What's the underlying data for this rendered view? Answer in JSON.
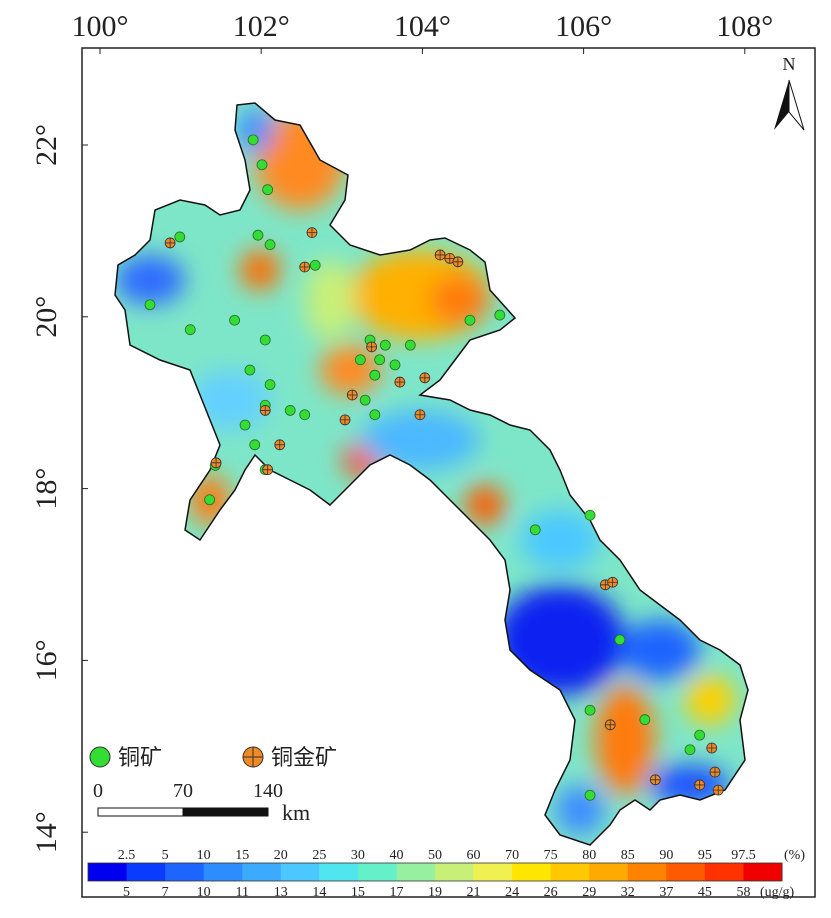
{
  "map": {
    "xticks": [
      {
        "value": 100,
        "label": "100°"
      },
      {
        "value": 102,
        "label": "102°"
      },
      {
        "value": 104,
        "label": "104°"
      },
      {
        "value": 106,
        "label": "106°"
      },
      {
        "value": 108,
        "label": "108°"
      }
    ],
    "yticks": [
      {
        "value": 14,
        "label": "14°"
      },
      {
        "value": 16,
        "label": "16°"
      },
      {
        "value": 18,
        "label": "18°"
      },
      {
        "value": 20,
        "label": "20°"
      },
      {
        "value": 22,
        "label": "22°"
      }
    ],
    "north": "N",
    "legend": {
      "copper": "铜矿",
      "copper_gold": "铜金矿",
      "copper_color": "#33dd33",
      "copper_gold_color": "#f08a24"
    },
    "scale_bar": {
      "labels": [
        0,
        70,
        140
      ],
      "unit": "km"
    },
    "colorbar": {
      "colors": [
        "#0000f0",
        "#0a3cff",
        "#1e64ff",
        "#2d8cff",
        "#3caaff",
        "#4bc8ff",
        "#50e6f0",
        "#64f0c8",
        "#96f0a0",
        "#c8f078",
        "#f0f050",
        "#ffe600",
        "#ffc800",
        "#ffaa00",
        "#ff8200",
        "#ff5a00",
        "#ff3200",
        "#f00000"
      ],
      "percent_labels": [
        2.5,
        5,
        10,
        15,
        20,
        25,
        30,
        40,
        50,
        60,
        70,
        75,
        80,
        85,
        90,
        95,
        97.5
      ],
      "percent_unit": "(%)",
      "conc_labels": [
        5,
        7,
        10,
        11,
        13,
        14,
        15,
        17,
        19,
        21,
        24,
        26,
        29,
        32,
        37,
        45,
        58
      ],
      "conc_unit": "(ug/g)"
    },
    "copper_mines": [
      [
        101.9,
        22.06
      ],
      [
        102.01,
        21.77
      ],
      [
        102.08,
        21.48
      ],
      [
        101.96,
        20.95
      ],
      [
        102.11,
        20.84
      ],
      [
        100.99,
        20.93
      ],
      [
        100.62,
        20.14
      ],
      [
        101.12,
        19.85
      ],
      [
        101.67,
        19.96
      ],
      [
        102.05,
        19.73
      ],
      [
        101.86,
        19.38
      ],
      [
        102.11,
        19.21
      ],
      [
        102.05,
        18.97
      ],
      [
        102.36,
        18.91
      ],
      [
        102.54,
        18.86
      ],
      [
        101.8,
        18.74
      ],
      [
        101.92,
        18.51
      ],
      [
        102.05,
        18.22
      ],
      [
        101.43,
        18.27
      ],
      [
        101.36,
        17.87
      ],
      [
        103.35,
        19.73
      ],
      [
        103.54,
        19.67
      ],
      [
        103.47,
        19.5
      ],
      [
        103.23,
        19.5
      ],
      [
        103.66,
        19.44
      ],
      [
        103.41,
        19.32
      ],
      [
        103.85,
        19.67
      ],
      [
        103.29,
        19.03
      ],
      [
        103.41,
        18.86
      ],
      [
        102.67,
        20.6
      ],
      [
        104.59,
        19.96
      ],
      [
        104.96,
        20.02
      ],
      [
        106.08,
        17.69
      ],
      [
        105.4,
        17.52
      ],
      [
        106.45,
        16.24
      ],
      [
        106.08,
        15.42
      ],
      [
        106.76,
        15.31
      ],
      [
        107.44,
        15.13
      ],
      [
        107.32,
        14.96
      ],
      [
        106.08,
        14.43
      ]
    ],
    "copper_gold_mines": [
      [
        100.87,
        20.86
      ],
      [
        102.63,
        20.98
      ],
      [
        102.54,
        20.58
      ],
      [
        104.22,
        20.72
      ],
      [
        104.34,
        20.68
      ],
      [
        104.44,
        20.64
      ],
      [
        103.13,
        19.09
      ],
      [
        103.72,
        19.24
      ],
      [
        104.03,
        19.29
      ],
      [
        103.37,
        19.65
      ],
      [
        102.05,
        18.91
      ],
      [
        102.23,
        18.51
      ],
      [
        101.44,
        18.3
      ],
      [
        102.08,
        18.22
      ],
      [
        103.04,
        18.8
      ],
      [
        103.97,
        18.86
      ],
      [
        106.27,
        16.88
      ],
      [
        106.36,
        16.91
      ],
      [
        106.33,
        15.25
      ],
      [
        106.89,
        14.61
      ],
      [
        107.44,
        14.55
      ],
      [
        107.59,
        14.98
      ],
      [
        107.63,
        14.7
      ],
      [
        107.67,
        14.49
      ]
    ]
  }
}
